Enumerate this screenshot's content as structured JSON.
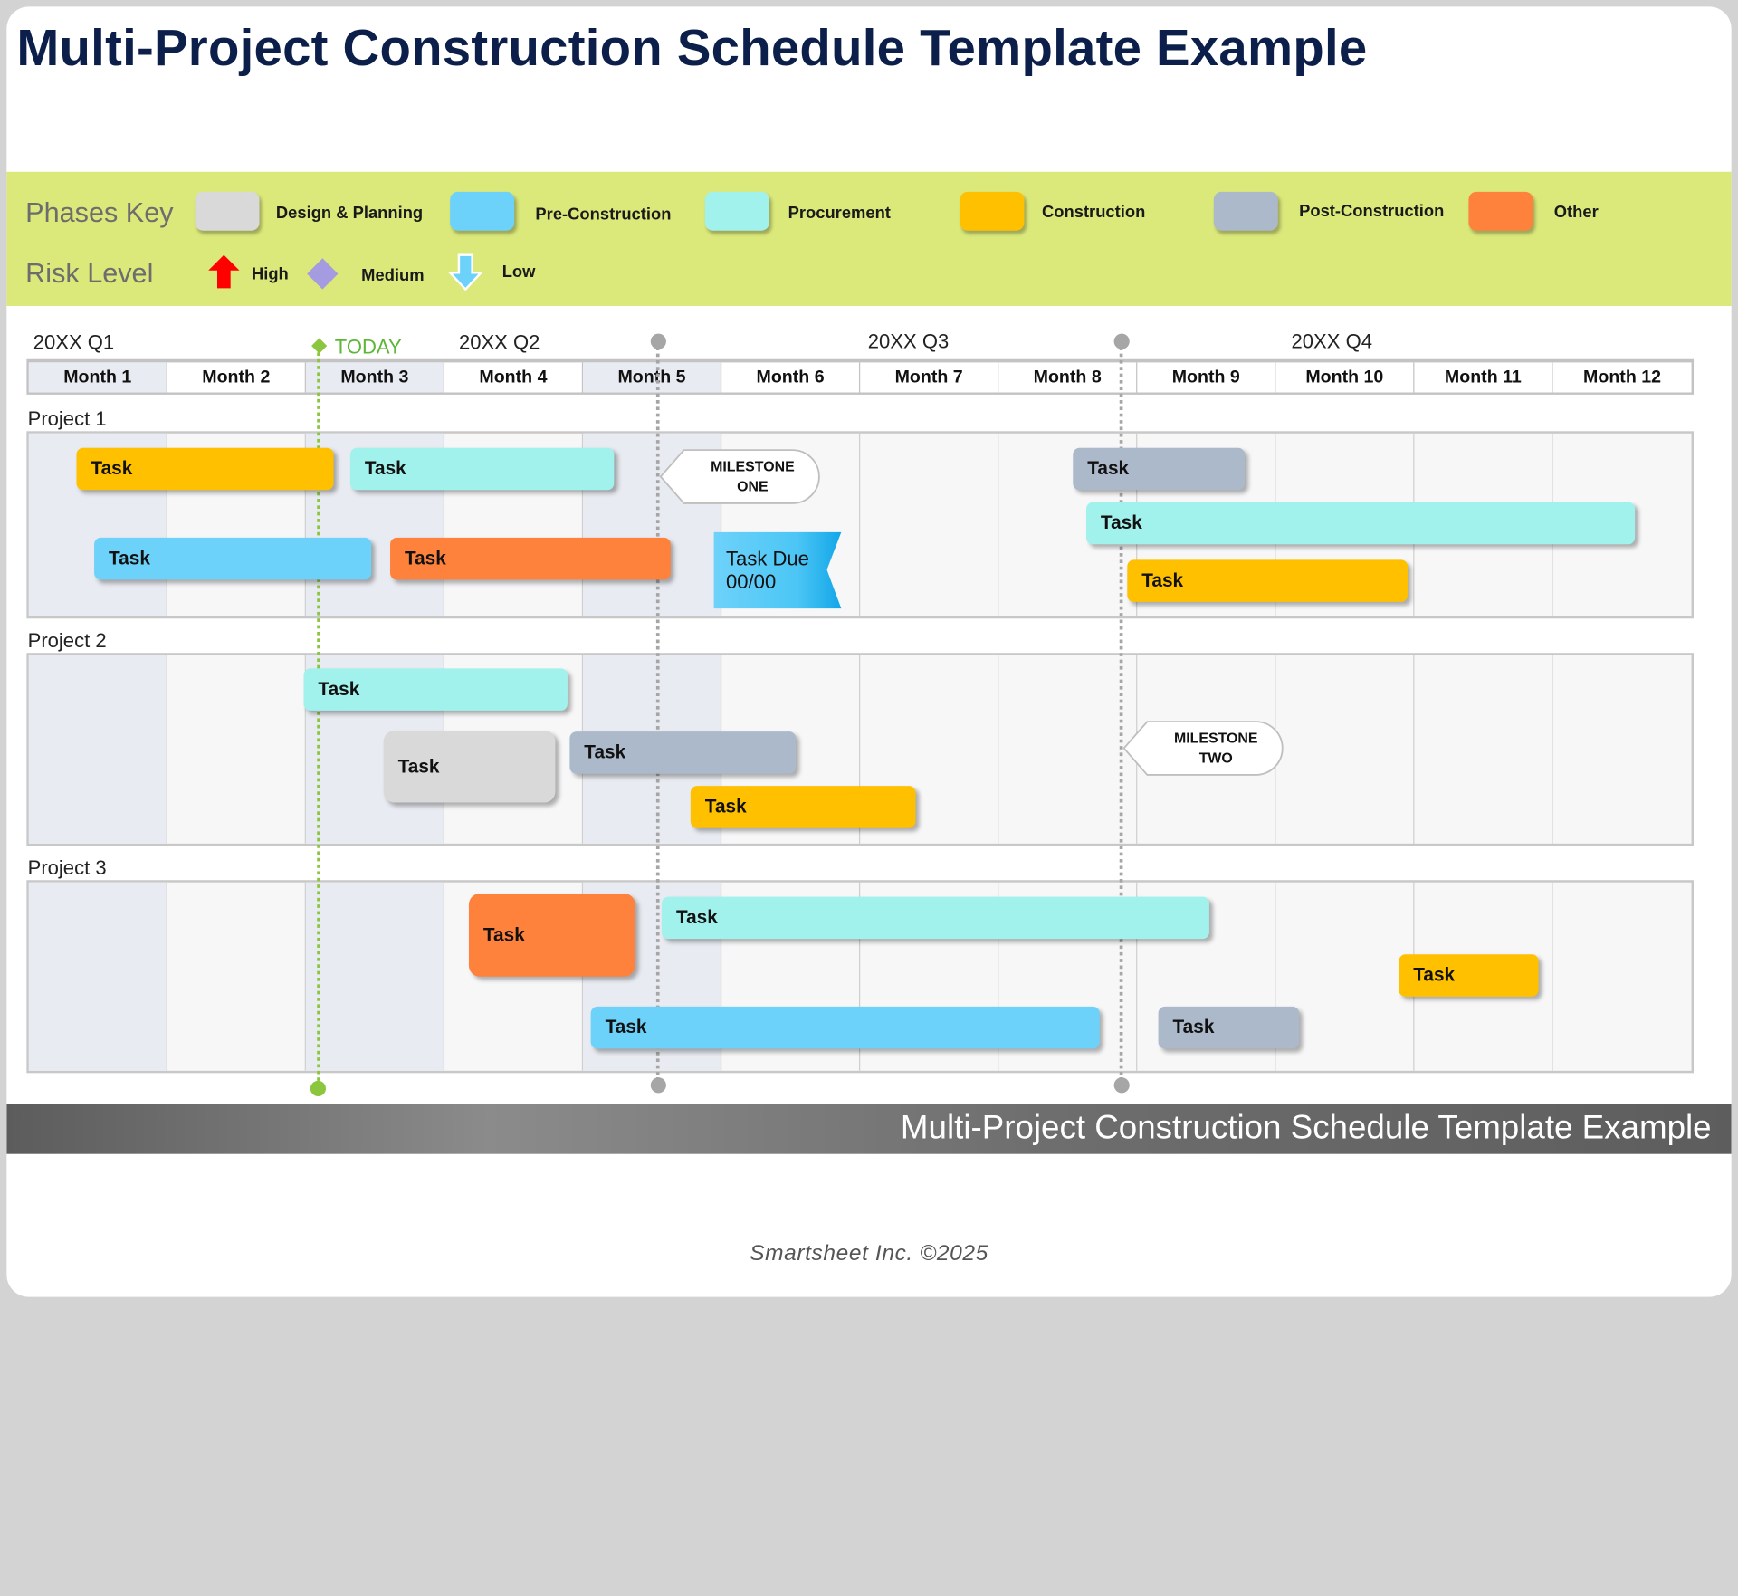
{
  "title": "Multi-Project Construction Schedule Template Example",
  "key": {
    "phases_heading": "Phases Key",
    "risk_heading": "Risk Level",
    "phases": [
      {
        "label": "Design & Planning",
        "color": "#d9d9d9"
      },
      {
        "label": "Pre-Construction",
        "color": "#6dd2fa"
      },
      {
        "label": "Procurement",
        "color": "#a1f2ec"
      },
      {
        "label": "Construction",
        "color": "#ffc000"
      },
      {
        "label": "Post-Construction",
        "color": "#acb9ca"
      },
      {
        "label": "Other",
        "color": "#ff823c"
      }
    ],
    "risks": [
      {
        "label": "High",
        "icon": "red-up-arrow-icon",
        "color": "#ff0000"
      },
      {
        "label": "Medium",
        "icon": "purple-diamond-icon",
        "color": "#a59be0"
      },
      {
        "label": "Low",
        "icon": "blue-down-arrow-icon",
        "color": "#6dd2fa"
      }
    ]
  },
  "timeline": {
    "quarters": [
      "20XX Q1",
      "20XX Q2",
      "20XX Q3",
      "20XX Q4"
    ],
    "today_label": "TODAY",
    "months": [
      "Month 1",
      "Month 2",
      "Month 3",
      "Month 4",
      "Month 5",
      "Month 6",
      "Month 7",
      "Month 8",
      "Month 9",
      "Month 10",
      "Month 11",
      "Month 12"
    ],
    "shaded_months": [
      "Month 1",
      "Month 3",
      "Month 5"
    ],
    "today_color": "#8cc63f",
    "marker_color": "#a6a6a6"
  },
  "projects": [
    {
      "label": "Project 1",
      "tasks": [
        {
          "label": "Task",
          "phase": "Construction"
        },
        {
          "label": "Task",
          "phase": "Procurement"
        },
        {
          "label": "Task",
          "phase": "Pre-Construction"
        },
        {
          "label": "Task",
          "phase": "Other"
        },
        {
          "label": "Task",
          "phase": "Post-Construction"
        },
        {
          "label": "Task",
          "phase": "Procurement"
        },
        {
          "label": "Task",
          "phase": "Construction"
        }
      ],
      "milestone": "MILESTONE\nONE",
      "task_due": "Task Due\n00/00"
    },
    {
      "label": "Project 2",
      "tasks": [
        {
          "label": "Task",
          "phase": "Procurement"
        },
        {
          "label": "Task",
          "phase": "Design & Planning"
        },
        {
          "label": "Task",
          "phase": "Post-Construction"
        },
        {
          "label": "Task",
          "phase": "Construction"
        }
      ],
      "milestone": "MILESTONE\nTWO"
    },
    {
      "label": "Project 3",
      "tasks": [
        {
          "label": "Task",
          "phase": "Other"
        },
        {
          "label": "Task",
          "phase": "Procurement"
        },
        {
          "label": "Task",
          "phase": "Construction"
        },
        {
          "label": "Task",
          "phase": "Pre-Construction"
        },
        {
          "label": "Task",
          "phase": "Post-Construction"
        }
      ]
    }
  ],
  "footer": {
    "banner": "Multi-Project Construction Schedule Template Example",
    "copyright": "Smartsheet Inc. ©2025"
  }
}
